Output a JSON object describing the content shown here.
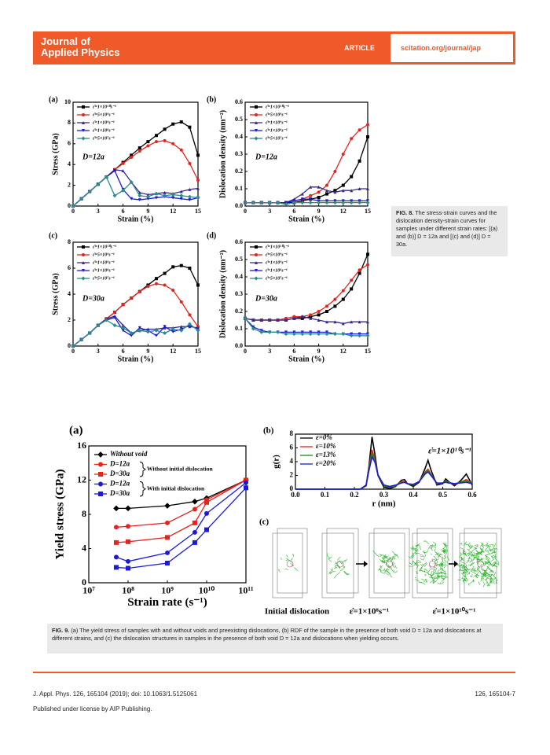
{
  "header": {
    "journal": "Journal of Applied Physics",
    "article_type": "ARTICLE",
    "url": "scitation.org/journal/jap"
  },
  "chart_data": [
    {
      "type": "line",
      "panel": "(a)",
      "xlabel": "Strain (%)",
      "ylabel": "Stress (GPa)",
      "annotation": "D=12a",
      "xlim": [
        0,
        15
      ],
      "ylim": [
        0,
        10
      ],
      "xticks": [
        0,
        3,
        6,
        9,
        12,
        15
      ],
      "yticks": [
        0,
        2,
        4,
        6,
        8,
        10
      ],
      "legend": "upper left",
      "x": [
        0,
        1,
        2,
        3,
        4,
        5,
        6,
        7,
        8,
        9,
        10,
        11,
        12,
        13,
        14,
        15
      ],
      "series": [
        {
          "name": "ε̇=1×10¹⁰s⁻¹",
          "color": "#000000",
          "marker": "square",
          "values": [
            0,
            0.7,
            1.4,
            2.1,
            2.8,
            3.5,
            4.2,
            4.9,
            5.6,
            6.2,
            6.8,
            7.4,
            7.9,
            8.1,
            7.6,
            4.9
          ]
        },
        {
          "name": "ε̇=5×10⁹s⁻¹",
          "color": "#e8231e",
          "marker": "circle",
          "values": [
            0,
            0.7,
            1.4,
            2.1,
            2.8,
            3.5,
            4.1,
            4.7,
            5.3,
            5.8,
            6.2,
            6.3,
            6.0,
            5.4,
            4.1,
            2.5
          ]
        },
        {
          "name": "ε̇=1×10⁹s⁻¹",
          "color": "#3b2a8a",
          "marker": "triangle",
          "values": [
            0,
            0.7,
            1.4,
            2.1,
            2.8,
            3.5,
            3.4,
            2.3,
            1.3,
            1.1,
            1.2,
            1.3,
            1.2,
            1.4,
            1.6,
            1.7
          ]
        },
        {
          "name": "ε̇=1×10⁸s⁻¹",
          "color": "#1a1adc",
          "marker": "triangle-down",
          "values": [
            0,
            0.7,
            1.4,
            2.1,
            2.8,
            3.4,
            1.6,
            0.7,
            0.6,
            0.7,
            0.8,
            0.9,
            0.8,
            0.7,
            0.6,
            0.8
          ]
        },
        {
          "name": "ε̇=5×10⁷s⁻¹",
          "color": "#2a8c8c",
          "marker": "diamond",
          "values": [
            0,
            0.7,
            1.4,
            2.1,
            2.8,
            1.0,
            1.5,
            2.3,
            1.0,
            0.9,
            1.2,
            1.0,
            1.1,
            1.0,
            0.9,
            0.8
          ]
        }
      ]
    },
    {
      "type": "line",
      "panel": "(b)",
      "xlabel": "Strain (%)",
      "ylabel": "Dislocation density (nm⁻²)",
      "annotation": "D=12a",
      "xlim": [
        0,
        15
      ],
      "ylim": [
        0,
        0.6
      ],
      "xticks": [
        0,
        3,
        6,
        9,
        12,
        15
      ],
      "yticks": [
        {
          "value": 0,
          "label": "0.0"
        },
        0.1,
        0.2,
        0.3,
        0.4,
        0.5,
        0.6
      ],
      "legend": "upper left",
      "x": [
        0,
        1,
        2,
        3,
        4,
        5,
        6,
        7,
        8,
        9,
        10,
        11,
        12,
        13,
        14,
        15
      ],
      "series": [
        {
          "name": "ε̇=1×10¹⁰s⁻¹",
          "color": "#000000",
          "marker": "square",
          "values": [
            0.02,
            0.02,
            0.02,
            0.02,
            0.02,
            0.02,
            0.02,
            0.03,
            0.04,
            0.05,
            0.07,
            0.09,
            0.12,
            0.17,
            0.26,
            0.4
          ]
        },
        {
          "name": "ε̇=5×10⁹s⁻¹",
          "color": "#e8231e",
          "marker": "circle",
          "values": [
            0.02,
            0.02,
            0.02,
            0.02,
            0.02,
            0.02,
            0.03,
            0.04,
            0.06,
            0.08,
            0.12,
            0.2,
            0.3,
            0.39,
            0.44,
            0.47
          ]
        },
        {
          "name": "ε̇=1×10⁹s⁻¹",
          "color": "#3b2a8a",
          "marker": "triangle",
          "values": [
            0.02,
            0.02,
            0.02,
            0.02,
            0.02,
            0.02,
            0.04,
            0.07,
            0.11,
            0.11,
            0.09,
            0.08,
            0.09,
            0.09,
            0.1,
            0.1
          ]
        },
        {
          "name": "ε̇=1×10⁸s⁻¹",
          "color": "#1a1adc",
          "marker": "triangle-down",
          "values": [
            0.02,
            0.02,
            0.02,
            0.02,
            0.02,
            0.02,
            0.03,
            0.04,
            0.04,
            0.03,
            0.03,
            0.03,
            0.03,
            0.03,
            0.03,
            0.03
          ]
        },
        {
          "name": "ε̇=5×10⁷s⁻¹",
          "color": "#2a8c8c",
          "marker": "diamond",
          "values": [
            0.02,
            0.02,
            0.02,
            0.02,
            0.02,
            0.01,
            0.02,
            0.02,
            0.02,
            0.02,
            0.02,
            0.02,
            0.02,
            0.02,
            0.02,
            0.02
          ]
        }
      ]
    },
    {
      "type": "line",
      "panel": "(c)",
      "xlabel": "Strain (%)",
      "ylabel": "Stress (GPa)",
      "annotation": "D=30a",
      "xlim": [
        0,
        15
      ],
      "ylim": [
        0,
        8
      ],
      "xticks": [
        0,
        3,
        6,
        9,
        12,
        15
      ],
      "yticks": [
        0,
        2,
        4,
        6,
        8
      ],
      "legend": "upper left",
      "x": [
        0,
        1,
        2,
        3,
        4,
        5,
        6,
        7,
        8,
        9,
        10,
        11,
        12,
        13,
        14,
        15
      ],
      "series": [
        {
          "name": "ε̇=1×10¹⁰s⁻¹",
          "color": "#000000",
          "marker": "square",
          "values": [
            0,
            0.5,
            1.0,
            1.6,
            2.1,
            2.6,
            3.2,
            3.7,
            4.2,
            4.7,
            5.2,
            5.6,
            6.1,
            6.2,
            6.0,
            4.7
          ]
        },
        {
          "name": "ε̇=5×10⁹s⁻¹",
          "color": "#e8231e",
          "marker": "circle",
          "values": [
            0,
            0.5,
            1.0,
            1.6,
            2.1,
            2.6,
            3.2,
            3.7,
            4.2,
            4.6,
            4.8,
            4.7,
            4.3,
            3.4,
            2.4,
            1.5
          ]
        },
        {
          "name": "ε̇=1×10⁹s⁻¹",
          "color": "#3b2a8a",
          "marker": "triangle",
          "values": [
            0,
            0.5,
            1.0,
            1.6,
            2.1,
            2.3,
            1.6,
            1.0,
            1.2,
            1.3,
            1.3,
            1.4,
            1.4,
            1.5,
            1.5,
            1.4
          ]
        },
        {
          "name": "ε̇=1×10⁸s⁻¹",
          "color": "#1a1adc",
          "marker": "triangle-down",
          "values": [
            0,
            0.5,
            1.0,
            1.6,
            2.0,
            2.2,
            1.2,
            0.8,
            1.4,
            1.2,
            0.8,
            1.5,
            1.1,
            1.3,
            1.6,
            1.3
          ]
        },
        {
          "name": "ε̇=5×10⁷s⁻¹",
          "color": "#2a8c8c",
          "marker": "diamond",
          "values": [
            0,
            0.5,
            1.0,
            1.6,
            2.0,
            1.6,
            1.4,
            1.0,
            1.2,
            1.1,
            1.2,
            1.0,
            1.3,
            1.2,
            1.7,
            1.2
          ]
        }
      ]
    },
    {
      "type": "line",
      "panel": "(d)",
      "xlabel": "Strain (%)",
      "ylabel": "Dislocation density (nm⁻²)",
      "annotation": "D=30a",
      "xlim": [
        0,
        15
      ],
      "ylim": [
        0,
        0.6
      ],
      "xticks": [
        0,
        3,
        6,
        9,
        12,
        15
      ],
      "yticks": [
        {
          "value": 0,
          "label": "0.0"
        },
        0.1,
        0.2,
        0.3,
        0.4,
        0.5,
        0.6
      ],
      "legend": "upper left",
      "x": [
        0,
        1,
        2,
        3,
        4,
        5,
        6,
        7,
        8,
        9,
        10,
        11,
        12,
        13,
        14,
        15
      ],
      "series": [
        {
          "name": "ε̇=1×10¹⁰s⁻¹",
          "color": "#000000",
          "marker": "square",
          "values": [
            0.16,
            0.15,
            0.15,
            0.15,
            0.15,
            0.15,
            0.16,
            0.16,
            0.17,
            0.18,
            0.2,
            0.23,
            0.27,
            0.33,
            0.42,
            0.53
          ]
        },
        {
          "name": "ε̇=5×10⁹s⁻¹",
          "color": "#e8231e",
          "marker": "circle",
          "values": [
            0.16,
            0.15,
            0.15,
            0.15,
            0.15,
            0.16,
            0.17,
            0.17,
            0.18,
            0.2,
            0.23,
            0.27,
            0.32,
            0.38,
            0.44,
            0.47
          ]
        },
        {
          "name": "ε̇=1×10⁹s⁻¹",
          "color": "#3b2a8a",
          "marker": "triangle",
          "values": [
            0.16,
            0.15,
            0.15,
            0.15,
            0.15,
            0.15,
            0.16,
            0.17,
            0.16,
            0.15,
            0.14,
            0.14,
            0.13,
            0.14,
            0.14,
            0.14
          ]
        },
        {
          "name": "ε̇=1×10⁸s⁻¹",
          "color": "#1a1adc",
          "marker": "triangle-down",
          "values": [
            0.16,
            0.11,
            0.09,
            0.08,
            0.08,
            0.08,
            0.08,
            0.08,
            0.08,
            0.08,
            0.08,
            0.07,
            0.07,
            0.07,
            0.07,
            0.07
          ]
        },
        {
          "name": "ε̇=5×10⁷s⁻¹",
          "color": "#2a8c8c",
          "marker": "diamond",
          "values": [
            0.16,
            0.1,
            0.08,
            0.08,
            0.08,
            0.07,
            0.07,
            0.07,
            0.07,
            0.07,
            0.07,
            0.07,
            0.07,
            0.06,
            0.06,
            0.06
          ]
        }
      ]
    },
    {
      "type": "line",
      "panel": "(a)",
      "xlabel": "Strain rate (s⁻¹)",
      "ylabel": "Yield stress (GPa)",
      "annotations": [
        "Without initial dislocation",
        "With initial dislocation"
      ],
      "xscale": "log",
      "xlim": [
        10000000,
        100000000000
      ],
      "ylim": [
        0,
        16
      ],
      "xticks": [
        {
          "value": 10000000,
          "label": "10⁷"
        },
        {
          "value": 100000000,
          "label": "10⁸"
        },
        {
          "value": 1000000000,
          "label": "10⁹"
        },
        {
          "value": 10000000000,
          "label": "10¹⁰"
        },
        {
          "value": 100000000000,
          "label": "10¹¹"
        }
      ],
      "yticks": [
        0,
        4,
        8,
        12,
        16
      ],
      "legend": "upper left",
      "x": [
        50000000,
        100000000,
        1000000000,
        5000000000,
        10000000000,
        100000000000
      ],
      "series": [
        {
          "name": "Without void",
          "color": "#000000",
          "marker": "diamond",
          "values": [
            8.7,
            8.7,
            9.0,
            9.5,
            9.9,
            12.0
          ]
        },
        {
          "name": "D=12a",
          "color": "#e8231e",
          "marker": "circle",
          "values": [
            6.5,
            6.6,
            7.0,
            8.6,
            9.7,
            12.0
          ]
        },
        {
          "name": "D=30a",
          "color": "#e8231e",
          "marker": "square",
          "values": [
            4.7,
            4.8,
            5.3,
            7.0,
            9.4,
            12.0
          ]
        },
        {
          "name": "D=12a",
          "color": "#1a1adc",
          "marker": "circle",
          "values": [
            3.0,
            2.5,
            3.5,
            5.9,
            8.1,
            11.7
          ]
        },
        {
          "name": "D=30a",
          "color": "#1a1adc",
          "marker": "square",
          "values": [
            1.8,
            1.7,
            2.3,
            4.7,
            6.2,
            11.1
          ]
        }
      ]
    },
    {
      "type": "line",
      "panel": "(b)",
      "xlabel": "r (nm)",
      "ylabel": "g(r)",
      "annotation": "ε̇=1×10¹⁰s⁻¹",
      "xlim": [
        0,
        0.6
      ],
      "ylim": [
        0,
        8
      ],
      "xticks": [
        {
          "value": 0,
          "label": "0.0"
        },
        0.1,
        0.2,
        0.3,
        0.4,
        0.5,
        0.6
      ],
      "yticks": [
        0,
        2,
        4,
        6,
        8
      ],
      "legend": "upper left",
      "x": [
        0,
        0.2,
        0.22,
        0.24,
        0.25,
        0.26,
        0.27,
        0.28,
        0.3,
        0.32,
        0.34,
        0.36,
        0.37,
        0.38,
        0.4,
        0.42,
        0.44,
        0.45,
        0.46,
        0.48,
        0.5,
        0.51,
        0.52,
        0.54,
        0.56,
        0.58,
        0.6
      ],
      "series": [
        {
          "name": "ε=0%",
          "color": "#000000",
          "values": [
            0,
            0,
            0,
            0.5,
            3.5,
            7.6,
            5.0,
            2.0,
            0.3,
            0.1,
            0.4,
            1.3,
            1.4,
            0.8,
            0.4,
            1.0,
            3.0,
            4.2,
            2.8,
            0.6,
            0.8,
            1.5,
            1.1,
            0.5,
            1.2,
            2.2,
            0.6
          ]
        },
        {
          "name": "ε=10%",
          "color": "#e8231e",
          "values": [
            0,
            0,
            0,
            0.6,
            3.2,
            5.7,
            4.3,
            2.1,
            0.5,
            0.3,
            0.5,
            1.1,
            1.1,
            0.8,
            0.6,
            1.1,
            2.5,
            2.9,
            2.2,
            0.8,
            0.9,
            1.2,
            1.0,
            0.7,
            1.0,
            1.4,
            0.8
          ]
        },
        {
          "name": "ε=13%",
          "color": "#1a8c1a",
          "values": [
            0,
            0,
            0,
            0.6,
            3.0,
            5.2,
            4.1,
            2.1,
            0.5,
            0.3,
            0.5,
            1.0,
            1.0,
            0.8,
            0.6,
            1.1,
            2.4,
            2.7,
            2.1,
            0.8,
            0.9,
            1.1,
            1.0,
            0.8,
            1.0,
            1.2,
            0.8
          ]
        },
        {
          "name": "ε=20%",
          "color": "#1a1adc",
          "values": [
            0,
            0,
            0,
            0.6,
            2.8,
            4.7,
            3.9,
            2.1,
            0.6,
            0.4,
            0.6,
            0.9,
            1.0,
            0.8,
            0.7,
            1.1,
            2.2,
            2.5,
            2.0,
            0.9,
            0.9,
            1.0,
            0.9,
            0.8,
            0.9,
            1.0,
            0.8
          ]
        }
      ]
    }
  ],
  "figure9c": {
    "panel": "(c)",
    "labels": [
      "Initial dislocation",
      "ε̇=1×10⁸s⁻¹",
      "ε̇=1×10¹⁰s⁻¹"
    ]
  },
  "captions": {
    "fig8": {
      "label": "FIG. 8.",
      "text": "The stress-strain curves and the dislocation density-strain curves for samples under different strain rates: [(a) and (b)] D = 12a and [(c) and (d)] D = 30a."
    },
    "fig9": {
      "label": "FIG. 9.",
      "text": "(a) The yield stress of samples with and without voids and preexisting dislocations, (b) RDF of the sample in the presence of both void D = 12a and dislocations at different strains, and (c) the dislocation structures in samples in the presence of both void D = 12a and dislocations when yielding occurs."
    }
  },
  "footer": {
    "citation": "J. Appl. Phys. 126, 165104 (2019); doi: 10.1063/1.5125061",
    "page": "126, 165104-7",
    "license": "Published under license by AIP Publishing."
  }
}
